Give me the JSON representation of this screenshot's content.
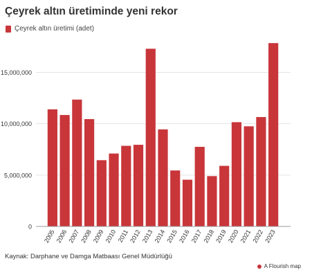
{
  "title": "Çeyrek altın üretiminde yeni rekor",
  "legend": {
    "label": "Çeyrek altın üretimi (adet)"
  },
  "colors": {
    "bar": "#c8363a",
    "grid": "#e4e4e4",
    "axis": "#333333"
  },
  "chart_data": {
    "type": "bar",
    "categories": [
      "2005",
      "2006",
      "2007",
      "2008",
      "2009",
      "2010",
      "2011",
      "2012",
      "2013",
      "2014",
      "2015",
      "2016",
      "2017",
      "2018",
      "2019",
      "2020",
      "2021",
      "2022",
      "2023"
    ],
    "series": [
      {
        "name": "Çeyrek altın üretimi (adet)",
        "values": [
          11400000,
          10850000,
          12350000,
          10450000,
          6450000,
          7100000,
          7850000,
          7950000,
          17300000,
          9450000,
          5450000,
          4550000,
          7750000,
          4900000,
          5900000,
          10150000,
          9750000,
          10650000,
          17850000
        ]
      }
    ],
    "ylim": [
      0,
      18000000
    ],
    "yticks": [
      0,
      5000000,
      10000000,
      15000000
    ],
    "ytick_labels": [
      "0",
      "5,000,000",
      "10,000,000",
      "15,000,000"
    ],
    "grid": true
  },
  "footer": {
    "source": "Kaynak: Darphane ve Damga Matbaası Genel Müdürlüğü",
    "credit": "A Flourish map",
    "credit_icon": "flourish-logo-icon"
  }
}
